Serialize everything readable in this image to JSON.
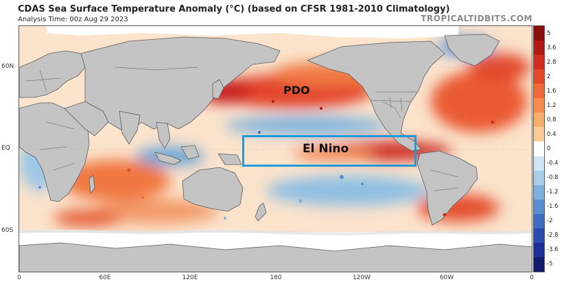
{
  "header": {
    "title": "CDAS Sea Surface Temperature Anomaly (°C) (based on CFSR 1981-2010 Climatology)",
    "analysis_time": "Analysis Time: 00z Aug 29 2023",
    "watermark": "TROPICALTIDBITS.COM"
  },
  "axes": {
    "latitude_ticks": [
      {
        "label": "60N",
        "lat": 60
      },
      {
        "label": "EQ",
        "lat": 0
      },
      {
        "label": "60S",
        "lat": -60
      }
    ],
    "longitude_ticks": [
      {
        "label": "0",
        "lon": 0
      },
      {
        "label": "60E",
        "lon": 60
      },
      {
        "label": "120E",
        "lon": 120
      },
      {
        "label": "180",
        "lon": 180
      },
      {
        "label": "120W",
        "lon": 240
      },
      {
        "label": "60W",
        "lon": 300
      },
      {
        "label": "0",
        "lon": 360
      }
    ],
    "lat_range": [
      -90,
      90
    ],
    "lon_range": [
      0,
      360
    ]
  },
  "colorbar": {
    "unit": "°C",
    "ticks": [
      "5",
      "3.6",
      "2.8",
      "2",
      "1.6",
      "1.2",
      "0.8",
      "0.4",
      "0",
      "-0.4",
      "-0.8",
      "-1.2",
      "-1.6",
      "-2",
      "-2.8",
      "-3.6",
      "-5"
    ],
    "colors": [
      "#8b0d0d",
      "#b11a14",
      "#cf2e1e",
      "#e34a2a",
      "#ef6a38",
      "#f58c4e",
      "#f9ad6a",
      "#fccb93",
      "#ffffff",
      "#cfe5f3",
      "#a6cde9",
      "#7db0dc",
      "#5a8fcf",
      "#3d6cc1",
      "#2a4cae",
      "#1c2f93",
      "#121a6e"
    ]
  },
  "annotations": {
    "pdo": "PDO",
    "el_nino": "El Nino",
    "box_color": "#1e9ad6"
  },
  "colors": {
    "land": "#c4c4c4",
    "ice": "#ffffff",
    "warm_strong": "#d8332a",
    "warm": "#f39a6a",
    "warm_light": "#fbd1ad",
    "cool": "#9cc7e6",
    "cool_strong": "#4f8fd0"
  }
}
